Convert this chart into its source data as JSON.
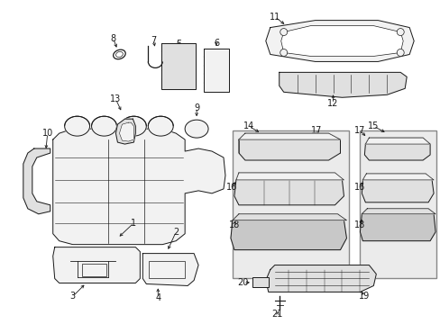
{
  "bg_color": "#ffffff",
  "lc": "#1a1a1a",
  "lw": 0.7,
  "fill_light": "#f2f2f2",
  "fill_mid": "#e0e0e0",
  "fill_dark": "#c8c8c8",
  "box_fill": "#e8e8e8"
}
